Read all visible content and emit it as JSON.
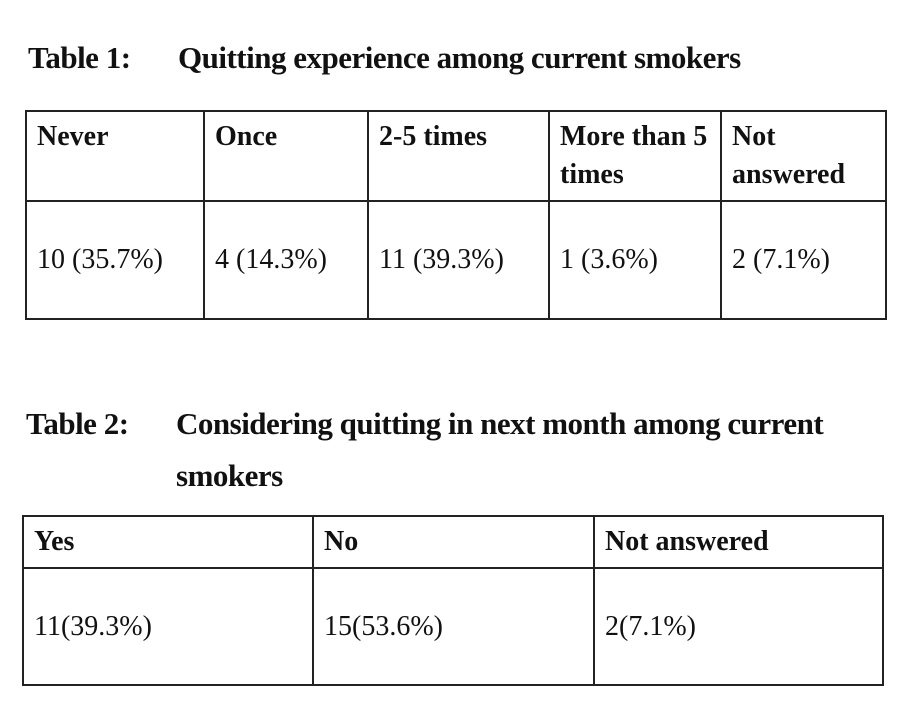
{
  "table1": {
    "label": "Table 1:",
    "title": "Quitting experience among current smokers",
    "header": [
      "Never",
      "Once",
      "2-5 times",
      "More than 5 times",
      "Not answered"
    ],
    "rows": [
      [
        "10 (35.7%)",
        "4 (14.3%)",
        "11 (39.3%)",
        "1 (3.6%)",
        "2 (7.1%)"
      ]
    ]
  },
  "table2": {
    "label": "Table 2:",
    "title": "Considering quitting in next month among current smokers",
    "header": [
      "Yes",
      "No",
      "Not answered"
    ],
    "rows": [
      [
        "11(39.3%)",
        "15(53.6%)",
        "2(7.1%)"
      ]
    ]
  }
}
